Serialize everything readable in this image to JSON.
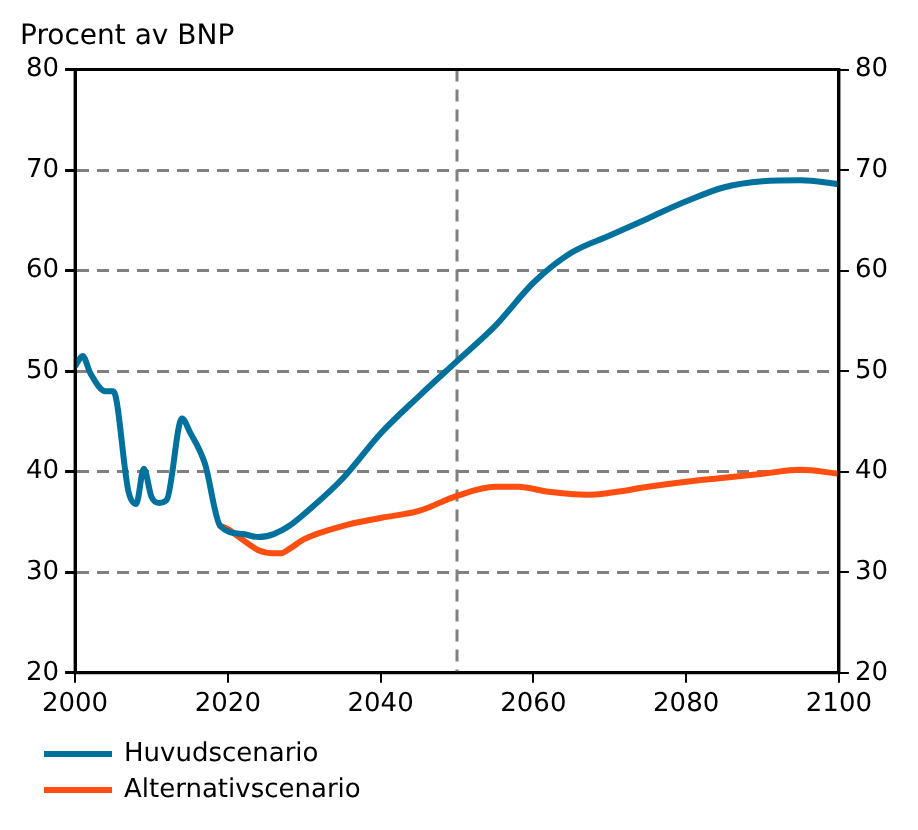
{
  "chart_data": {
    "type": "line",
    "title": "Procent av BNP",
    "series": [
      {
        "name": "Huvudscenario",
        "color": "#00719c",
        "x": [
          2000,
          2001,
          2002,
          2004,
          2005,
          2007,
          2008,
          2009,
          2010,
          2011,
          2012,
          2014,
          2015,
          2017,
          2019,
          2022,
          2024,
          2026,
          2028,
          2030,
          2035,
          2040,
          2045,
          2050,
          2055,
          2060,
          2065,
          2070,
          2075,
          2080,
          2085,
          2090,
          2095,
          2100
        ],
        "values": [
          50.5,
          51.5,
          49.8,
          48,
          48,
          38,
          36.8,
          40.3,
          37.5,
          36.9,
          37.2,
          45.3,
          44,
          40.8,
          34.6,
          33.8,
          33.5,
          33.8,
          34.6,
          35.8,
          39.3,
          43.8,
          47.5,
          51,
          54.5,
          58.8,
          61.8,
          63.5,
          65.2,
          66.9,
          68.3,
          68.9,
          69,
          68.6
        ]
      },
      {
        "name": "Alternativscenario",
        "color": "#ff4e0f",
        "x": [
          2019,
          2020,
          2022,
          2024,
          2026,
          2027,
          2028,
          2030,
          2035,
          2040,
          2045,
          2050,
          2055,
          2058,
          2062,
          2067,
          2070,
          2075,
          2080,
          2085,
          2090,
          2095,
          2100
        ],
        "values": [
          34.6,
          34.3,
          33.2,
          32.2,
          31.9,
          31.9,
          32.3,
          33.3,
          34.6,
          35.4,
          36.1,
          37.6,
          38.5,
          38.5,
          38,
          37.7,
          37.9,
          38.5,
          39,
          39.4,
          39.8,
          40.2,
          39.8
        ]
      }
    ],
    "xlim": [
      2000,
      2100
    ],
    "xticks": [
      2000,
      2020,
      2040,
      2060,
      2080,
      2100
    ],
    "ylim": [
      20,
      80
    ],
    "yticks": [
      20,
      30,
      40,
      50,
      60,
      70,
      80
    ],
    "y2lim": [
      20,
      80
    ],
    "y2ticks": [
      20,
      30,
      40,
      50,
      60,
      70,
      80
    ],
    "ref_lines": [
      {
        "axis": "x",
        "value": 2050,
        "color": "#808080",
        "line_style": "dashed"
      }
    ],
    "grid": "y",
    "legend": "bottom",
    "marker": "none",
    "line_style": "solid"
  }
}
